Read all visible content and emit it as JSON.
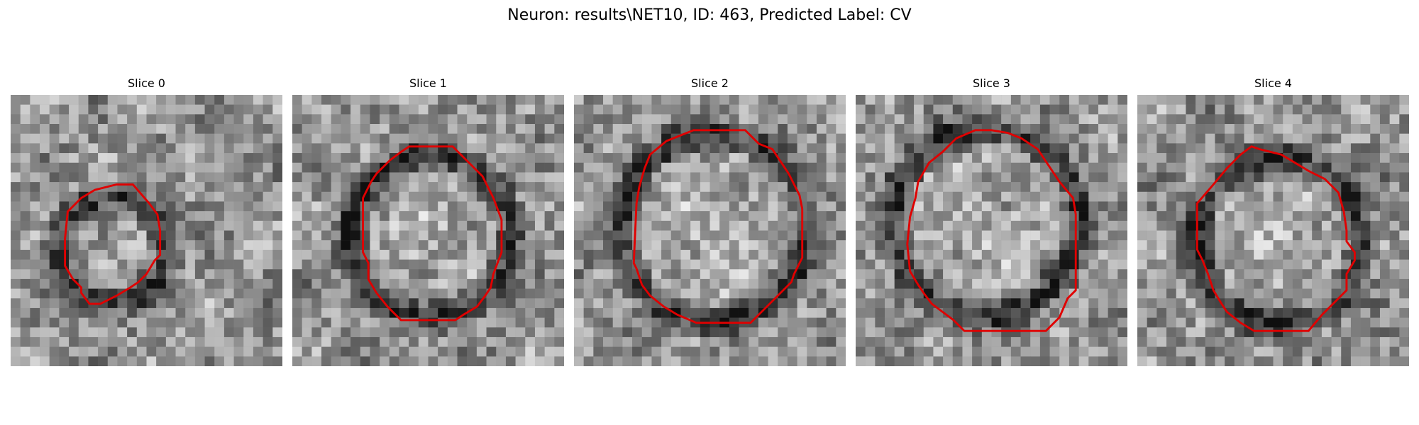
{
  "figure": {
    "title": "Neuron: results\\NET10, ID: 463, Predicted Label: CV",
    "contour_color": "#e00000"
  },
  "panels": [
    {
      "title": "Slice 0"
    },
    {
      "title": "Slice 1"
    },
    {
      "title": "Slice 2"
    },
    {
      "title": "Slice 3"
    },
    {
      "title": "Slice 4"
    }
  ]
}
